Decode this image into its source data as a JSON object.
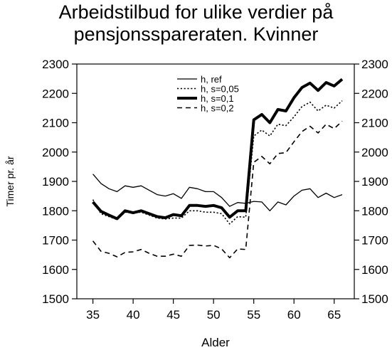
{
  "chart_data": {
    "type": "line",
    "title_lines": [
      "Arbeidstilbud for ulike verdier på",
      "pensjonssparerate­n. Kvinner"
    ],
    "xlabel": "Alder",
    "ylabel": "Timer pr. år",
    "xlim": [
      33,
      67.5
    ],
    "ylim": [
      1500,
      2300
    ],
    "xticks": [
      35,
      40,
      45,
      50,
      55,
      60,
      65
    ],
    "yticks": [
      1500,
      1600,
      1700,
      1800,
      1900,
      2000,
      2100,
      2200,
      2300
    ],
    "grid": false,
    "legend_position": "top-right",
    "x": [
      35,
      36,
      37,
      38,
      39,
      40,
      41,
      42,
      43,
      44,
      45,
      46,
      47,
      48,
      49,
      50,
      51,
      52,
      53,
      54,
      55,
      56,
      57,
      58,
      59,
      60,
      61,
      62,
      63,
      64,
      65,
      66
    ],
    "series": [
      {
        "name": "h, ref",
        "style": "solid",
        "weight": 1.3,
        "values": [
          1925,
          1893,
          1875,
          1865,
          1885,
          1880,
          1885,
          1870,
          1855,
          1850,
          1858,
          1842,
          1880,
          1875,
          1865,
          1865,
          1845,
          1815,
          1828,
          1825,
          1832,
          1830,
          1800,
          1830,
          1820,
          1850,
          1870,
          1875,
          1845,
          1860,
          1845,
          1855
        ]
      },
      {
        "name": "h, s=0,05",
        "style": "dotted",
        "weight": 1.6,
        "values": [
          1838,
          1790,
          1780,
          1770,
          1795,
          1793,
          1795,
          1785,
          1775,
          1772,
          1775,
          1775,
          1800,
          1800,
          1795,
          1795,
          1790,
          1755,
          1780,
          1778,
          2055,
          2075,
          2055,
          2095,
          2090,
          2120,
          2155,
          2170,
          2140,
          2160,
          2150,
          2175
        ]
      },
      {
        "name": "h, s=0,1",
        "style": "solid",
        "weight": 4,
        "values": [
          1830,
          1798,
          1785,
          1773,
          1800,
          1793,
          1800,
          1790,
          1780,
          1776,
          1787,
          1783,
          1818,
          1818,
          1815,
          1818,
          1810,
          1778,
          1800,
          1800,
          2110,
          2128,
          2100,
          2145,
          2140,
          2185,
          2220,
          2235,
          2210,
          2237,
          2225,
          2248
        ]
      },
      {
        "name": "h, s=0,2",
        "style": "dashed",
        "weight": 1.6,
        "values": [
          1697,
          1662,
          1655,
          1643,
          1658,
          1660,
          1668,
          1655,
          1645,
          1645,
          1652,
          1645,
          1682,
          1683,
          1680,
          1682,
          1670,
          1640,
          1670,
          1668,
          1965,
          1985,
          1960,
          1995,
          1998,
          2035,
          2070,
          2088,
          2065,
          2095,
          2080,
          2105
        ]
      }
    ]
  }
}
